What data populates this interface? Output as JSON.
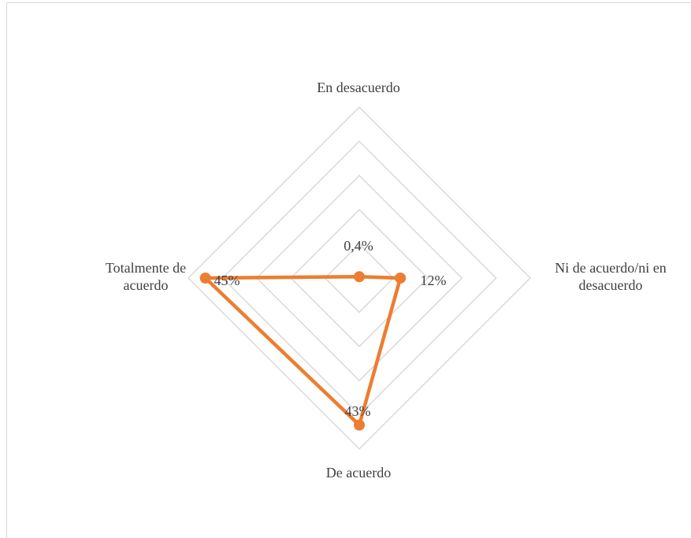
{
  "chart_data": {
    "type": "radar",
    "categories": [
      "En desacuerdo",
      "Ni de acuerdo/ni en desacuerdo",
      "De acuerdo",
      "Totalmente de acuerdo"
    ],
    "category_labels": [
      [
        "En desacuerdo"
      ],
      [
        "Ni de acuerdo/ni en",
        "desacuerdo"
      ],
      [
        "De acuerdo"
      ],
      [
        "Totalmente de",
        "acuerdo"
      ]
    ],
    "values": [
      0.4,
      12,
      43,
      45
    ],
    "data_labels": [
      "0,4%",
      "12%",
      "43%",
      "45%"
    ],
    "rlim": [
      0,
      50
    ],
    "grid": true,
    "line_color": "#ED7D31",
    "grid_color": "#d9d9d9",
    "text_color": "#404040"
  }
}
